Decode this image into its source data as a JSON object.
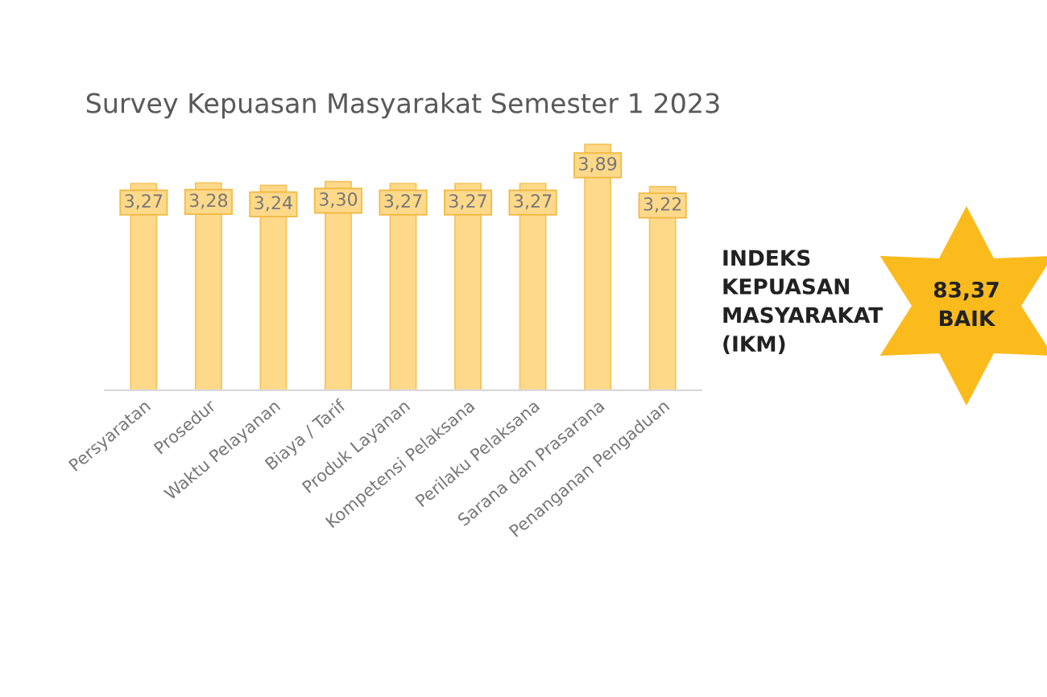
{
  "chart_data": {
    "type": "bar",
    "title": "Survey Kepuasan Masyarakat Semester 1 2023",
    "categories": [
      "Persyaratan",
      "Prosedur",
      "Waktu Pelayanan",
      "Biaya / Tarif",
      "Produk Layanan",
      "Kompetensi Pelaksana",
      "Perilaku Pelaksana",
      "Sarana dan Prasarana",
      "Penanganan Pengaduan"
    ],
    "values": [
      3.27,
      3.28,
      3.24,
      3.3,
      3.27,
      3.27,
      3.27,
      3.89,
      3.22
    ],
    "value_labels": [
      "3,27",
      "3,28",
      "3,24",
      "3,30",
      "3,27",
      "3,27",
      "3,27",
      "3,89",
      "3,22"
    ],
    "color": "#ffd98a",
    "grid": false,
    "annotations": [
      "INDEKS\nKEPUASAN\nMASYARAKAT\n(IKM)",
      "83,37\nBAIK"
    ]
  }
}
